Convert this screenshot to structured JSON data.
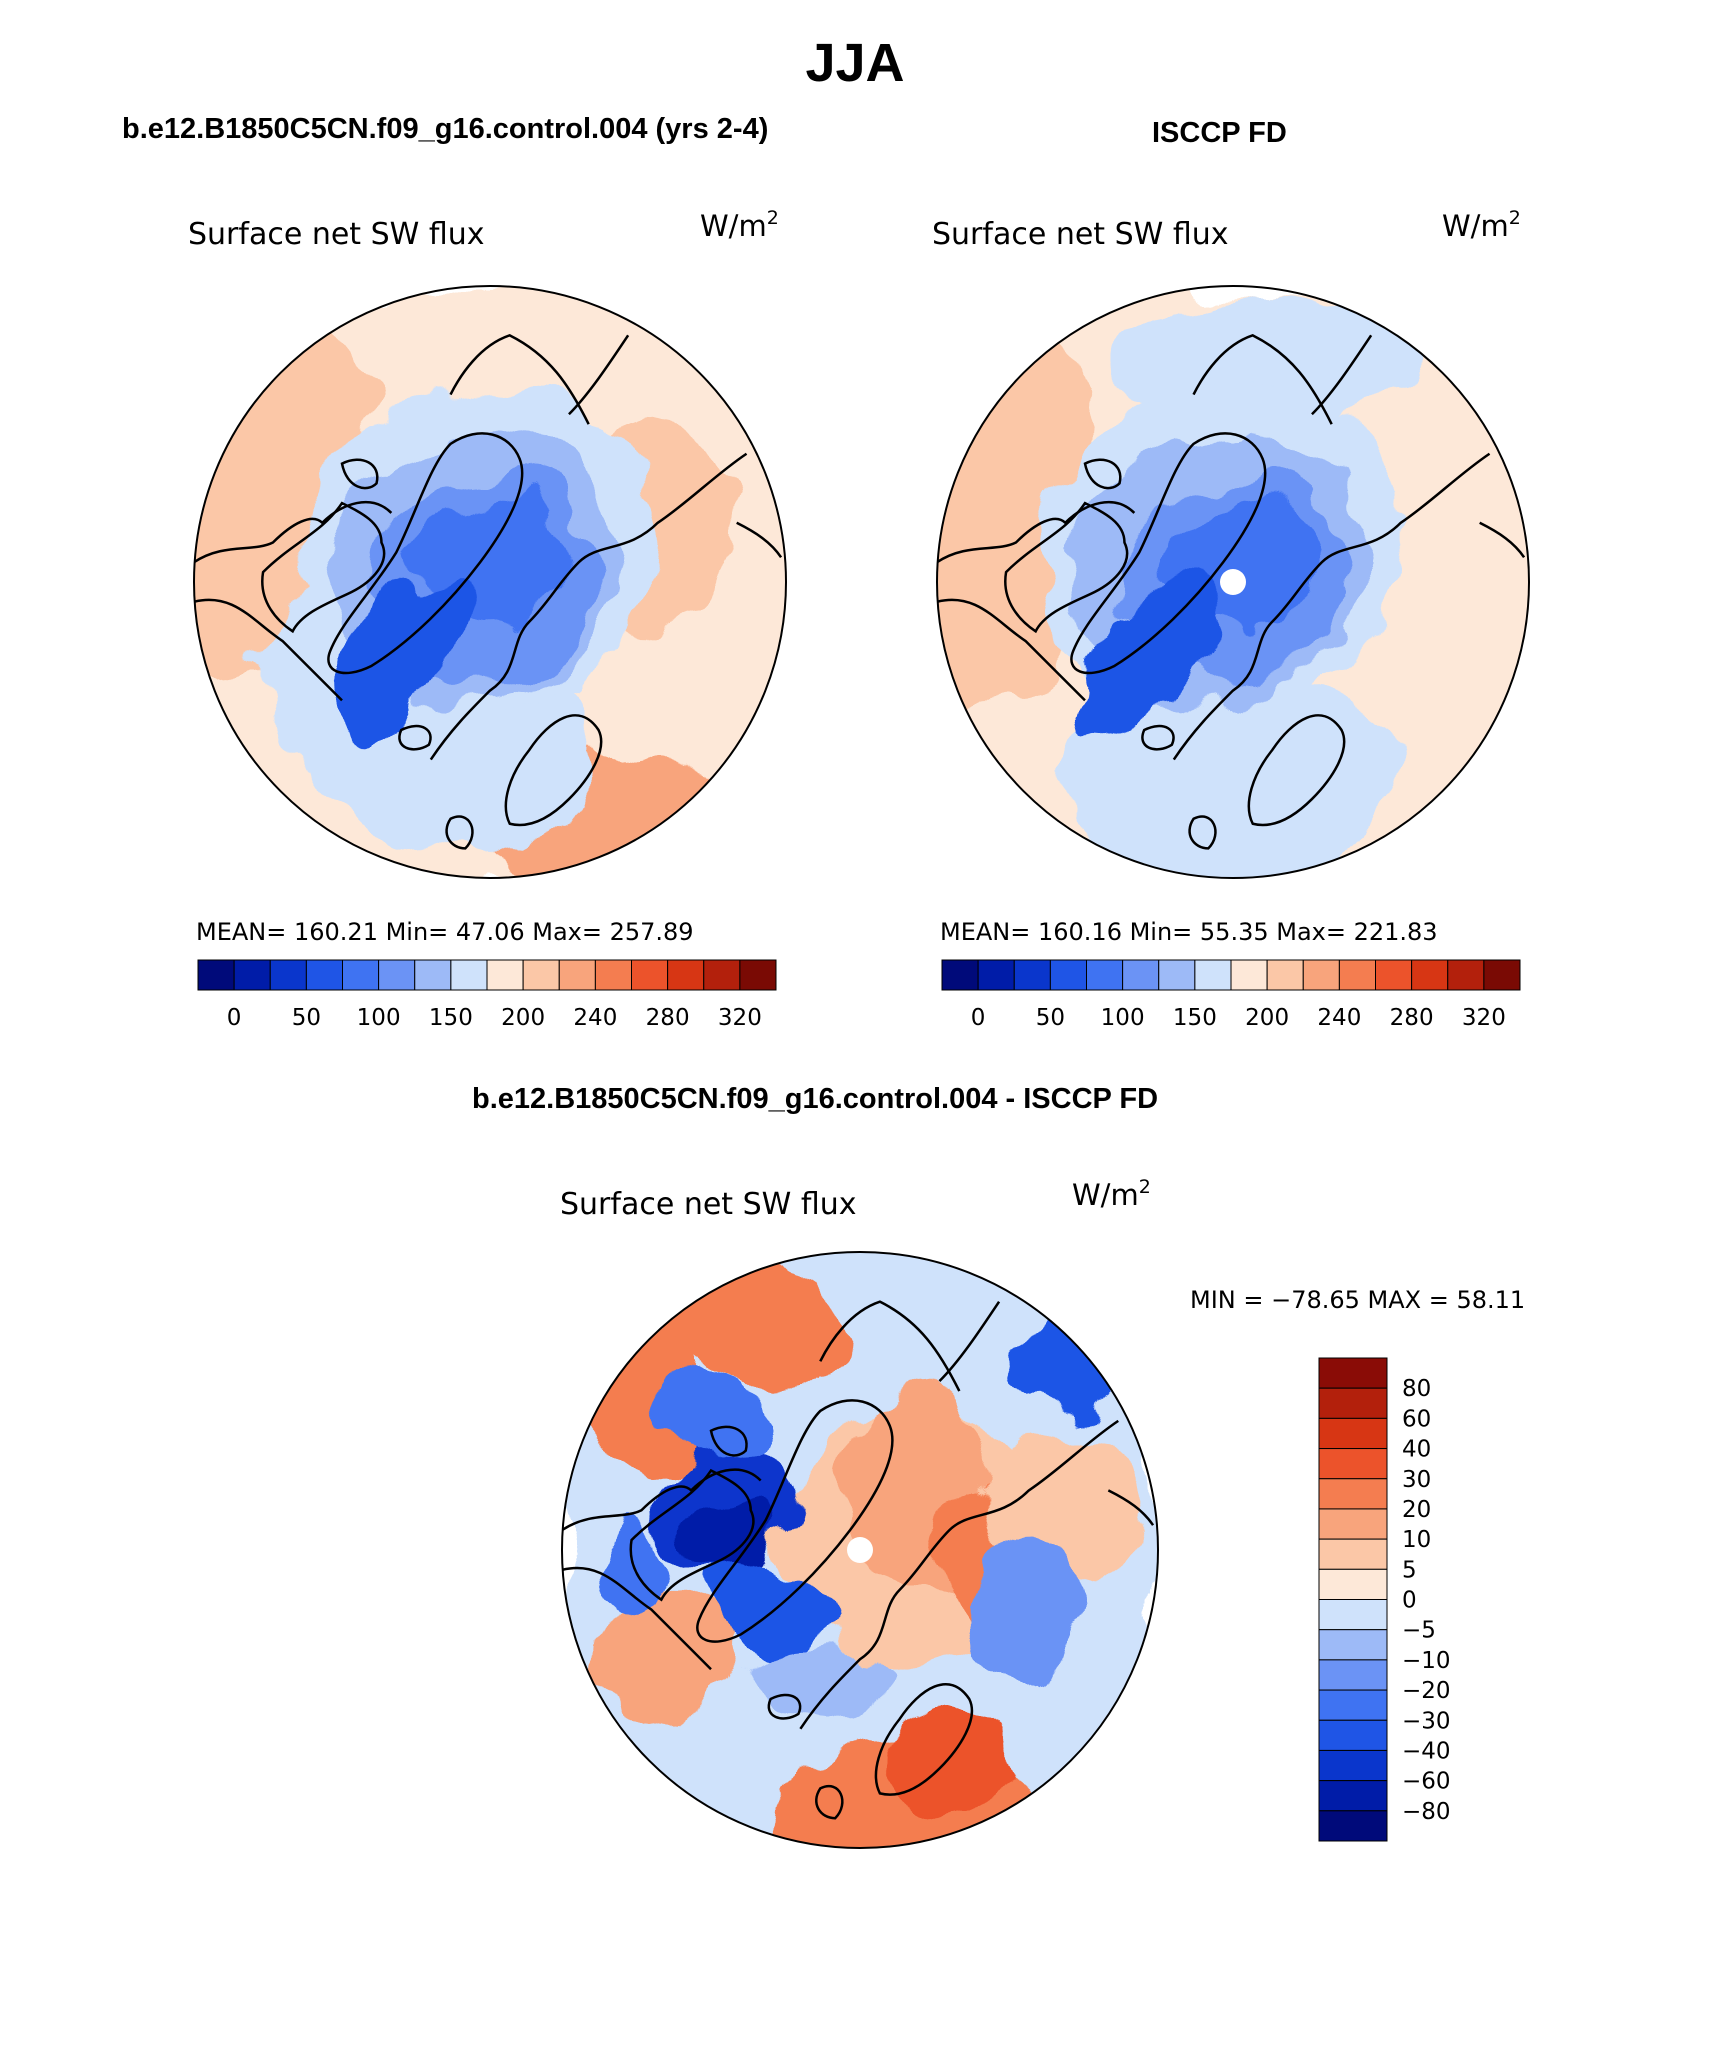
{
  "figure": {
    "season_title": "JJA",
    "model_title": "b.e12.B1850C5CN.f09_g16.control.004 (yrs 2-4)",
    "obs_title": "ISCCP FD",
    "diff_title": "b.e12.B1850C5CN.f09_g16.control.004 - ISCCP FD"
  },
  "chart_data": [
    {
      "type": "polar-contour-map",
      "panel": "model",
      "variable": "Surface net SW flux",
      "units": "W/m²",
      "units_base": "W/m",
      "units_sup": "2",
      "stats": {
        "mean_label": "MEAN=",
        "mean": "160.21",
        "min_label": "Min=",
        "min": "47.06",
        "max_label": "Max=",
        "max": "257.89"
      },
      "colorbar": {
        "labels": [
          "0",
          "50",
          "100",
          "150",
          "200",
          "240",
          "280",
          "320"
        ],
        "colors": [
          "#000a7a",
          "#001ca8",
          "#0a36cc",
          "#1f55e6",
          "#3f73f2",
          "#6b93f5",
          "#9dbaf7",
          "#cfe2fb",
          "#fde8d8",
          "#fbc7a7",
          "#f8a47c",
          "#f47d50",
          "#ec532b",
          "#d73614",
          "#b3200c",
          "#7a0a04"
        ]
      }
    },
    {
      "type": "polar-contour-map",
      "panel": "observations",
      "variable": "Surface net SW flux",
      "units": "W/m²",
      "units_base": "W/m",
      "units_sup": "2",
      "stats": {
        "mean_label": "MEAN=",
        "mean": "160.16",
        "min_label": "Min=",
        "min": "55.35",
        "max_label": "Max=",
        "max": "221.83"
      },
      "colorbar": {
        "labels": [
          "0",
          "50",
          "100",
          "150",
          "200",
          "240",
          "280",
          "320"
        ],
        "colors": [
          "#000a7a",
          "#001ca8",
          "#0a36cc",
          "#1f55e6",
          "#3f73f2",
          "#6b93f5",
          "#9dbaf7",
          "#cfe2fb",
          "#fde8d8",
          "#fbc7a7",
          "#f8a47c",
          "#f47d50",
          "#ec532b",
          "#d73614",
          "#b3200c",
          "#7a0a04"
        ]
      }
    },
    {
      "type": "polar-contour-map",
      "panel": "difference",
      "variable": "Surface net SW flux",
      "units": "W/m²",
      "units_base": "W/m",
      "units_sup": "2",
      "stats": {
        "text": "MIN = −78.65 MAX =   58.11",
        "min": "−78.65",
        "max": "58.11"
      },
      "colorbar": {
        "labels": [
          "80",
          "60",
          "40",
          "30",
          "20",
          "10",
          "5",
          "0",
          "−5",
          "−10",
          "−20",
          "−30",
          "−40",
          "−60",
          "−80"
        ],
        "colors": [
          "#8a0c06",
          "#b3200c",
          "#d73614",
          "#ec532b",
          "#f47d50",
          "#f8a47c",
          "#fbc7a7",
          "#fde8d8",
          "#cfe2fb",
          "#9dbaf7",
          "#6b93f5",
          "#3f73f2",
          "#1f55e6",
          "#0a36cc",
          "#001ca8",
          "#000a7a"
        ]
      }
    }
  ]
}
